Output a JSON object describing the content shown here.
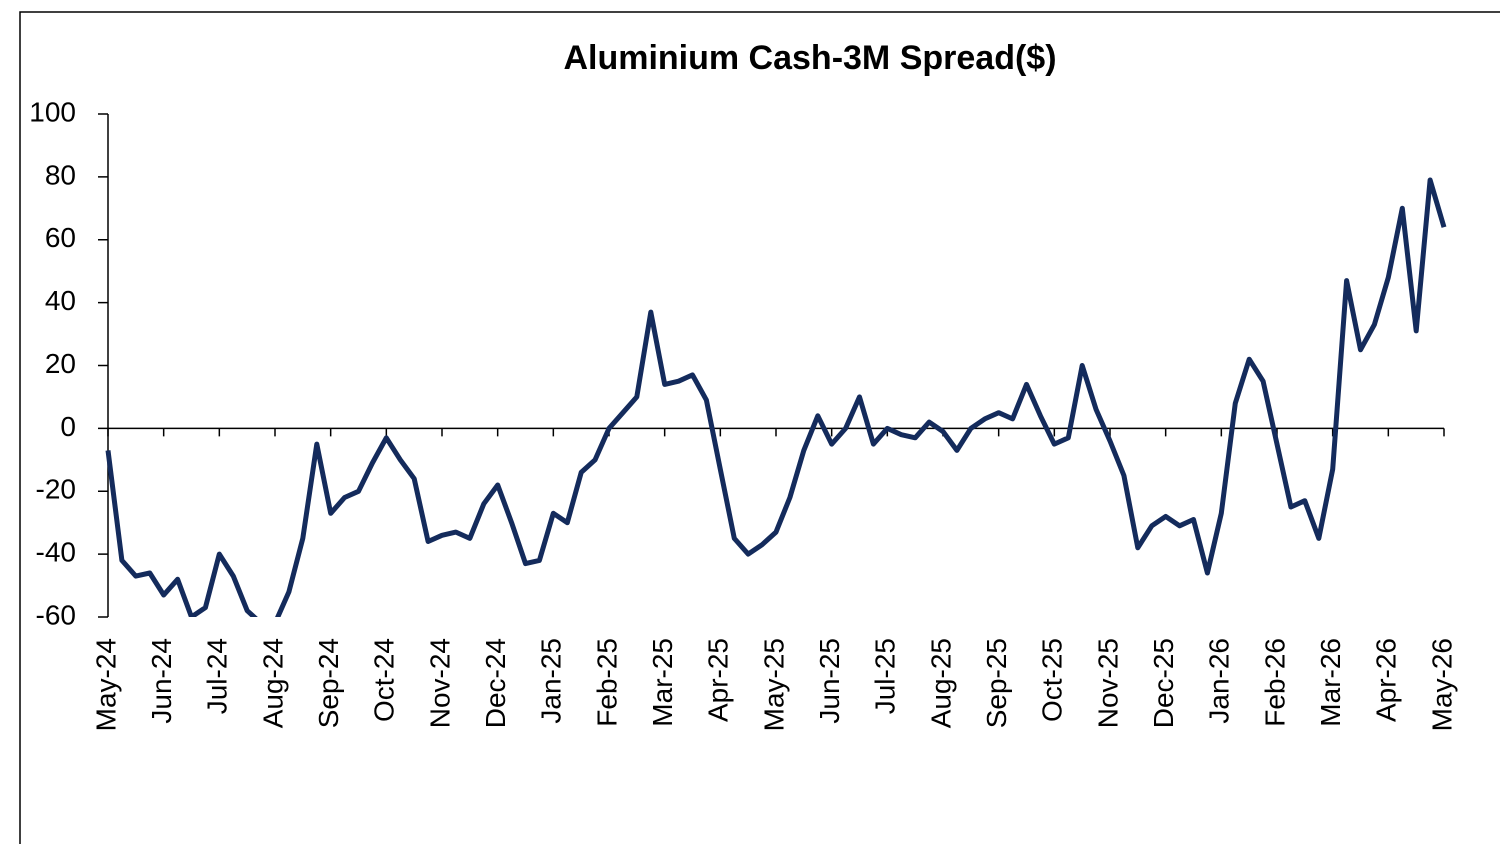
{
  "chart_data": {
    "type": "line",
    "title": "Aluminium Cash-3M Spread($)",
    "categories": [
      "May-24",
      null,
      null,
      null,
      "Jun-24",
      null,
      null,
      null,
      "Jul-24",
      null,
      null,
      null,
      "Aug-24",
      null,
      null,
      null,
      "Sep-24",
      null,
      null,
      null,
      "Oct-24",
      null,
      null,
      null,
      "Nov-24",
      null,
      null,
      null,
      "Dec-24",
      null,
      null,
      null,
      "Jan-25",
      null,
      null,
      null,
      "Feb-25",
      null,
      null,
      null,
      "Mar-25",
      null,
      null,
      null,
      "Apr-25",
      null,
      null,
      null,
      "May-25",
      null,
      null,
      null,
      "Jun-25",
      null,
      null,
      null,
      "Jul-25",
      null,
      null,
      null,
      "Aug-25",
      null,
      null,
      null,
      "Sep-25",
      null,
      null,
      null,
      "Oct-25",
      null,
      null,
      null,
      "Nov-25",
      null,
      null,
      null,
      "Dec-25",
      null,
      null,
      null,
      "Jan-26",
      null,
      null,
      null,
      "Feb-26",
      null,
      null,
      null,
      "Mar-26",
      null,
      null,
      null,
      "Apr-26",
      null,
      null,
      null,
      "May-26"
    ],
    "series": [
      {
        "name": "Aluminium Cash-3M Spread",
        "color": "#142b5c",
        "values": [
          -7,
          -42,
          -47,
          -46,
          -53,
          -48,
          -60,
          -57,
          -40,
          -47,
          -58,
          -62,
          -62,
          -52,
          -35,
          -5,
          -27,
          -22,
          -20,
          -11,
          -3,
          -10,
          -16,
          -36,
          -34,
          -33,
          -35,
          -24,
          -18,
          -30,
          -43,
          -42,
          -27,
          -30,
          -14,
          -10,
          0,
          5,
          10,
          37,
          14,
          15,
          17,
          9,
          -13,
          -35,
          -40,
          -37,
          -33,
          -22,
          -7,
          4,
          -5,
          0,
          10,
          -5,
          0,
          -2,
          -3,
          2,
          -1,
          -7,
          0,
          3,
          5,
          3,
          14,
          4,
          -5,
          -3,
          20,
          6,
          -4,
          -15,
          -38,
          -31,
          -28,
          -31,
          -29,
          -46,
          -27,
          8,
          22,
          15,
          -5,
          -25,
          -23,
          -35,
          -13,
          47,
          25,
          33,
          48,
          70,
          31,
          79,
          64
        ]
      }
    ],
    "ylim": [
      -60,
      100
    ],
    "yticks": [
      100,
      80,
      60,
      40,
      20,
      0,
      -20,
      -40,
      -60
    ]
  }
}
